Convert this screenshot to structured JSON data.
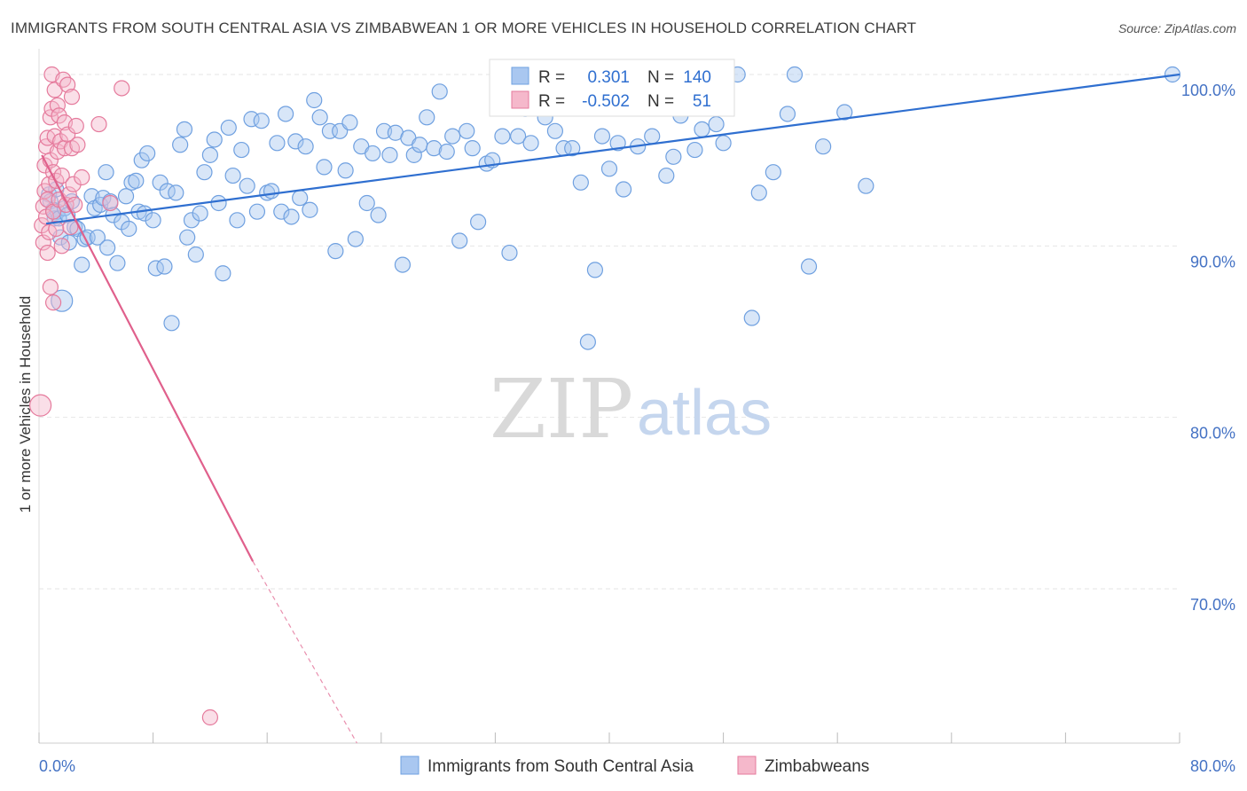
{
  "header": {
    "title": "IMMIGRANTS FROM SOUTH CENTRAL ASIA VS ZIMBABWEAN 1 OR MORE VEHICLES IN HOUSEHOLD CORRELATION CHART",
    "source": "Source: ZipAtlas.com"
  },
  "watermark": {
    "zip": "ZIP",
    "atlas": "atlas"
  },
  "stats_legend": {
    "r_label": "R =",
    "n_label": "N =",
    "rows": [
      {
        "r": "0.301",
        "n": "140",
        "color": "#a9c7f0"
      },
      {
        "r": "-0.502",
        "n": "51",
        "color": "#f5b8cb"
      }
    ]
  },
  "chart_data": {
    "type": "scatter",
    "title": "IMMIGRANTS FROM SOUTH CENTRAL ASIA VS ZIMBABWEAN 1 OR MORE VEHICLES IN HOUSEHOLD CORRELATION CHART",
    "xlabel": "",
    "ylabel": "1 or more Vehicles in Household",
    "xlim": [
      0,
      80
    ],
    "ylim": [
      61,
      101.5
    ],
    "x_tick_labels": [
      {
        "value": 0,
        "label": "0.0%"
      },
      {
        "value": 80,
        "label": "80.0%"
      }
    ],
    "y_tick_labels": [
      {
        "value": 100,
        "label": "100.0%"
      },
      {
        "value": 90,
        "label": "90.0%"
      },
      {
        "value": 80,
        "label": "80.0%"
      },
      {
        "value": 70,
        "label": "70.0%"
      }
    ],
    "grid": true,
    "legend_position": "bottom",
    "series": [
      {
        "name": "Immigrants from South Central Asia",
        "color": "#6fa0e0",
        "fill": "#a9c7f0",
        "trend": {
          "x": [
            0.5,
            80
          ],
          "y": [
            91.3,
            100
          ]
        },
        "points": [
          [
            0.7,
            93.0
          ],
          [
            0.8,
            92.6
          ],
          [
            1.0,
            92.1
          ],
          [
            1.1,
            91.6
          ],
          [
            1.2,
            93.3
          ],
          [
            1.3,
            92.0
          ],
          [
            1.4,
            91.6
          ],
          [
            1.5,
            90.5
          ],
          [
            1.6,
            86.8
          ],
          [
            1.8,
            92.2
          ],
          [
            2.0,
            91.8
          ],
          [
            2.1,
            90.2
          ],
          [
            2.3,
            92.6
          ],
          [
            2.5,
            91.1
          ],
          [
            2.7,
            91.0
          ],
          [
            3.0,
            88.9
          ],
          [
            3.2,
            90.4
          ],
          [
            3.4,
            90.5
          ],
          [
            3.7,
            92.9
          ],
          [
            3.9,
            92.2
          ],
          [
            4.1,
            90.5
          ],
          [
            4.3,
            92.4
          ],
          [
            4.5,
            92.8
          ],
          [
            4.7,
            94.3
          ],
          [
            4.8,
            89.9
          ],
          [
            5.0,
            92.6
          ],
          [
            5.2,
            91.8
          ],
          [
            5.5,
            89.0
          ],
          [
            5.8,
            91.4
          ],
          [
            6.1,
            92.9
          ],
          [
            6.3,
            91.0
          ],
          [
            6.5,
            93.7
          ],
          [
            6.8,
            93.8
          ],
          [
            7.0,
            92.0
          ],
          [
            7.2,
            95.0
          ],
          [
            7.4,
            91.9
          ],
          [
            7.6,
            95.4
          ],
          [
            8.0,
            91.5
          ],
          [
            8.2,
            88.7
          ],
          [
            8.5,
            93.7
          ],
          [
            8.8,
            88.8
          ],
          [
            9.0,
            93.2
          ],
          [
            9.3,
            85.5
          ],
          [
            9.6,
            93.1
          ],
          [
            9.9,
            95.9
          ],
          [
            10.2,
            96.8
          ],
          [
            10.4,
            90.5
          ],
          [
            10.7,
            91.5
          ],
          [
            11.0,
            89.5
          ],
          [
            11.3,
            91.9
          ],
          [
            11.6,
            94.3
          ],
          [
            12.0,
            95.3
          ],
          [
            12.3,
            96.2
          ],
          [
            12.6,
            92.5
          ],
          [
            12.9,
            88.4
          ],
          [
            13.3,
            96.9
          ],
          [
            13.6,
            94.1
          ],
          [
            13.9,
            91.5
          ],
          [
            14.2,
            95.6
          ],
          [
            14.6,
            93.5
          ],
          [
            14.9,
            97.4
          ],
          [
            15.3,
            92.0
          ],
          [
            15.6,
            97.3
          ],
          [
            16.0,
            93.1
          ],
          [
            16.3,
            93.2
          ],
          [
            16.7,
            96.0
          ],
          [
            17.0,
            92.0
          ],
          [
            17.3,
            97.7
          ],
          [
            17.7,
            91.7
          ],
          [
            18.0,
            96.1
          ],
          [
            18.3,
            92.8
          ],
          [
            18.7,
            95.8
          ],
          [
            19.0,
            92.1
          ],
          [
            19.3,
            98.5
          ],
          [
            19.7,
            97.5
          ],
          [
            20.0,
            94.6
          ],
          [
            20.4,
            96.7
          ],
          [
            20.8,
            89.7
          ],
          [
            21.1,
            96.7
          ],
          [
            21.5,
            94.4
          ],
          [
            21.8,
            97.2
          ],
          [
            22.2,
            90.4
          ],
          [
            22.6,
            95.8
          ],
          [
            23.0,
            92.5
          ],
          [
            23.4,
            95.4
          ],
          [
            23.8,
            91.8
          ],
          [
            24.2,
            96.7
          ],
          [
            24.6,
            95.3
          ],
          [
            25.0,
            96.6
          ],
          [
            25.5,
            88.9
          ],
          [
            25.9,
            96.3
          ],
          [
            26.3,
            95.3
          ],
          [
            26.7,
            95.9
          ],
          [
            27.2,
            97.5
          ],
          [
            27.7,
            95.7
          ],
          [
            28.1,
            99.0
          ],
          [
            28.6,
            95.5
          ],
          [
            29.0,
            96.4
          ],
          [
            29.5,
            90.3
          ],
          [
            30.0,
            96.7
          ],
          [
            30.4,
            95.7
          ],
          [
            30.8,
            91.4
          ],
          [
            31.4,
            94.8
          ],
          [
            31.8,
            95.0
          ],
          [
            32.5,
            96.4
          ],
          [
            33.0,
            89.6
          ],
          [
            33.6,
            96.4
          ],
          [
            34.1,
            98.0
          ],
          [
            34.5,
            96.0
          ],
          [
            35.0,
            99.2
          ],
          [
            35.5,
            97.5
          ],
          [
            36.2,
            96.7
          ],
          [
            36.8,
            95.7
          ],
          [
            37.4,
            95.7
          ],
          [
            38.0,
            93.7
          ],
          [
            38.5,
            84.4
          ],
          [
            39.0,
            88.6
          ],
          [
            39.5,
            96.4
          ],
          [
            40.0,
            94.5
          ],
          [
            40.6,
            96.0
          ],
          [
            41.0,
            93.3
          ],
          [
            41.6,
            100.0
          ],
          [
            42.0,
            95.8
          ],
          [
            43.0,
            96.4
          ],
          [
            44.0,
            94.1
          ],
          [
            44.5,
            95.2
          ],
          [
            45.0,
            97.6
          ],
          [
            45.5,
            100.0
          ],
          [
            46.0,
            95.6
          ],
          [
            46.5,
            96.8
          ],
          [
            47.0,
            100.0
          ],
          [
            47.5,
            97.1
          ],
          [
            48.0,
            96.0
          ],
          [
            49.0,
            100.0
          ],
          [
            50.0,
            85.8
          ],
          [
            50.5,
            93.1
          ],
          [
            51.5,
            94.3
          ],
          [
            52.5,
            97.7
          ],
          [
            53.0,
            100.0
          ],
          [
            54.0,
            88.8
          ],
          [
            55.0,
            95.8
          ],
          [
            56.5,
            97.8
          ],
          [
            58.0,
            93.5
          ],
          [
            79.5,
            100.0
          ]
        ]
      },
      {
        "name": "Zimbabweans",
        "color": "#e57a9c",
        "fill": "#f5b8cb",
        "trend": {
          "x": [
            0.2,
            15
          ],
          "y": [
            95.3,
            71.6
          ]
        },
        "trend_dashed": {
          "x": [
            15,
            22.3
          ],
          "y": [
            71.6,
            61
          ]
        },
        "points": [
          [
            0.1,
            80.7
          ],
          [
            0.2,
            91.2
          ],
          [
            0.3,
            90.2
          ],
          [
            0.3,
            92.3
          ],
          [
            0.4,
            93.2
          ],
          [
            0.4,
            94.7
          ],
          [
            0.5,
            95.8
          ],
          [
            0.5,
            91.7
          ],
          [
            0.6,
            89.6
          ],
          [
            0.6,
            96.3
          ],
          [
            0.6,
            92.7
          ],
          [
            0.7,
            93.6
          ],
          [
            0.7,
            90.8
          ],
          [
            0.8,
            97.5
          ],
          [
            0.8,
            95.0
          ],
          [
            0.8,
            87.6
          ],
          [
            0.9,
            100.0
          ],
          [
            0.9,
            98.0
          ],
          [
            1.0,
            94.3
          ],
          [
            1.0,
            92.0
          ],
          [
            1.0,
            86.7
          ],
          [
            1.1,
            99.1
          ],
          [
            1.1,
            96.4
          ],
          [
            1.2,
            93.8
          ],
          [
            1.2,
            91.0
          ],
          [
            1.3,
            98.2
          ],
          [
            1.3,
            95.5
          ],
          [
            1.4,
            97.6
          ],
          [
            1.4,
            92.7
          ],
          [
            1.5,
            96.1
          ],
          [
            1.6,
            94.1
          ],
          [
            1.6,
            90.0
          ],
          [
            1.7,
            99.7
          ],
          [
            1.8,
            97.2
          ],
          [
            1.8,
            95.7
          ],
          [
            1.9,
            92.4
          ],
          [
            2.0,
            99.4
          ],
          [
            2.0,
            96.5
          ],
          [
            2.1,
            93.0
          ],
          [
            2.2,
            91.1
          ],
          [
            2.3,
            98.7
          ],
          [
            2.3,
            95.7
          ],
          [
            2.4,
            93.6
          ],
          [
            2.5,
            92.4
          ],
          [
            2.6,
            97.0
          ],
          [
            2.7,
            95.9
          ],
          [
            3.0,
            94.0
          ],
          [
            4.2,
            97.1
          ],
          [
            5.0,
            92.5
          ],
          [
            5.8,
            99.2
          ],
          [
            12.0,
            62.5
          ]
        ]
      }
    ]
  },
  "bottom_legend": {
    "items": [
      {
        "label": "Immigrants from South Central Asia",
        "color": "#a9c7f0"
      },
      {
        "label": "Zimbabweans",
        "color": "#f5b8cb"
      }
    ]
  }
}
